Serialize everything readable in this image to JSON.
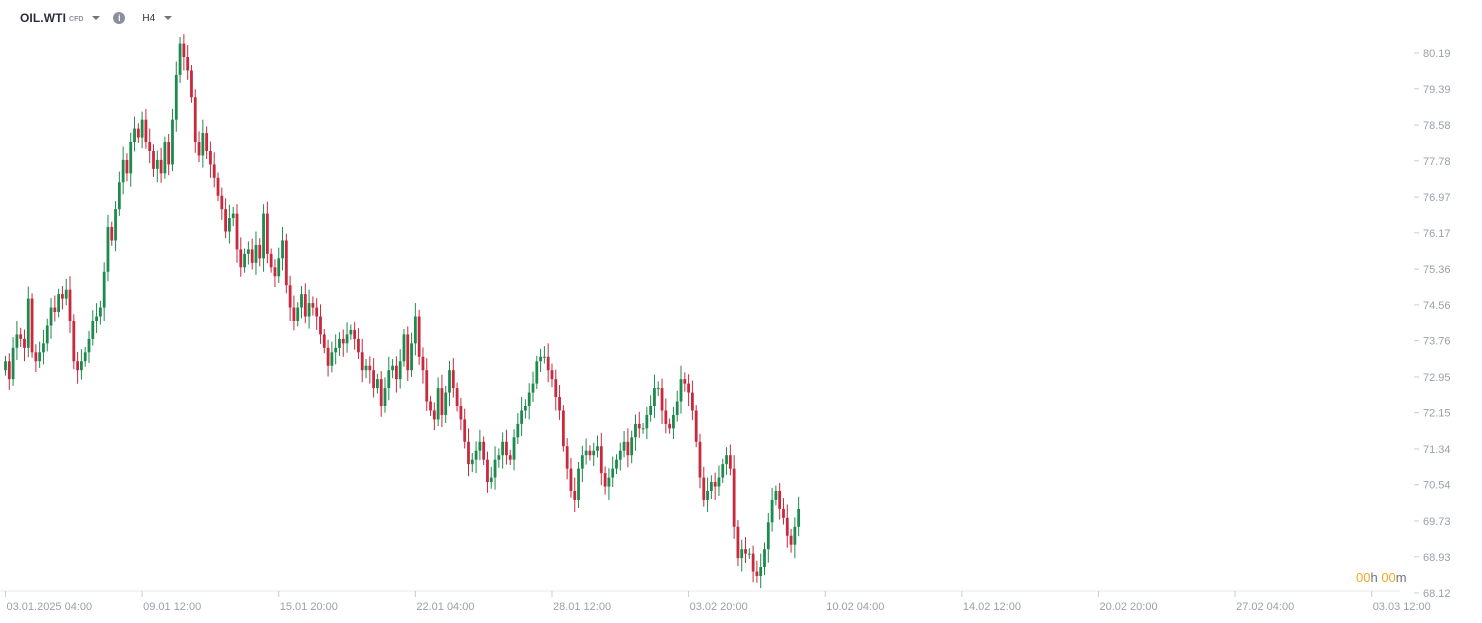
{
  "toolbar": {
    "symbol": "OIL.WTI",
    "symbol_type": "CFD",
    "info_icon": "i",
    "timeframe": "H4"
  },
  "countdown": {
    "h_value": "00",
    "h_unit": "h",
    "m_value": "00",
    "m_unit": "m"
  },
  "colors": {
    "up": "#1e8a4d",
    "down": "#c8293d",
    "axis_text": "#9aa0a8",
    "countdown": "#f5a623"
  },
  "chart_data": {
    "type": "candlestick",
    "timeframe": "H4",
    "y_ticks": [
      "80.19",
      "79.39",
      "78.58",
      "77.78",
      "76.97",
      "76.17",
      "75.36",
      "74.56",
      "73.76",
      "72.95",
      "72.15",
      "71.34",
      "70.54",
      "69.73",
      "68.93",
      "68.12"
    ],
    "ylim": [
      68.12,
      80.19
    ],
    "x_ticks": [
      "03.01.2025  04:00",
      "09.01  12:00",
      "15.01  20:00",
      "22.01  04:00",
      "28.01  12:00",
      "03.02  20:00",
      "10.02  04:00",
      "14.02  12:00",
      "20.02  20:00",
      "27.02  04:00",
      "03.03  12:00"
    ],
    "closes": [
      73.3,
      72.9,
      73.6,
      73.9,
      73.8,
      73.6,
      74.7,
      73.5,
      73.3,
      73.5,
      73.7,
      74.1,
      74.5,
      74.4,
      74.8,
      74.7,
      74.9,
      74.2,
      73.3,
      73.1,
      73.3,
      73.5,
      73.8,
      74.2,
      74.3,
      74.5,
      75.3,
      76.3,
      76.0,
      76.7,
      77.3,
      77.8,
      77.5,
      78.2,
      78.5,
      78.3,
      78.7,
      78.2,
      78.0,
      77.6,
      77.8,
      77.5,
      78.2,
      77.7,
      78.7,
      79.7,
      80.4,
      80.1,
      79.8,
      79.2,
      78.2,
      77.9,
      78.4,
      78.0,
      77.7,
      77.4,
      77.0,
      76.7,
      76.2,
      76.5,
      76.6,
      75.8,
      75.4,
      75.7,
      75.8,
      75.5,
      75.9,
      75.6,
      76.6,
      75.7,
      75.4,
      75.2,
      75.6,
      76.0,
      75.0,
      74.5,
      74.2,
      74.5,
      74.8,
      74.3,
      74.6,
      74.5,
      74.3,
      73.9,
      73.6,
      73.2,
      73.5,
      73.6,
      73.8,
      73.7,
      73.9,
      74.0,
      73.8,
      73.5,
      73.1,
      73.2,
      73.1,
      72.7,
      72.9,
      72.3,
      72.7,
      73.1,
      73.2,
      72.9,
      73.3,
      73.9,
      73.1,
      73.7,
      74.3,
      73.4,
      73.1,
      72.4,
      72.2,
      72.0,
      72.7,
      72.1,
      72.6,
      73.1,
      72.7,
      72.3,
      72.0,
      71.5,
      71.0,
      71.1,
      71.3,
      71.5,
      71.1,
      70.6,
      70.7,
      71.1,
      71.2,
      71.5,
      71.2,
      71.1,
      71.6,
      71.9,
      72.2,
      72.3,
      72.6,
      72.8,
      73.3,
      73.4,
      73.4,
      73.1,
      72.9,
      72.5,
      72.2,
      71.4,
      70.9,
      70.4,
      70.2,
      70.9,
      71.2,
      71.3,
      71.2,
      71.3,
      71.4,
      70.8,
      70.5,
      70.7,
      70.9,
      71.1,
      71.3,
      71.5,
      71.2,
      71.6,
      71.9,
      71.8,
      71.8,
      72.1,
      72.3,
      72.7,
      72.7,
      72.2,
      71.9,
      71.8,
      72.1,
      72.4,
      72.9,
      72.8,
      72.6,
      72.2,
      71.5,
      70.7,
      70.2,
      70.4,
      70.6,
      70.5,
      70.7,
      71.0,
      71.2,
      70.9,
      69.6,
      68.9,
      69.1,
      69.0,
      69.0,
      68.6,
      68.5,
      68.7,
      69.1,
      69.7,
      70.2,
      70.4,
      70.0,
      69.8,
      69.4,
      69.2,
      69.6,
      70.0
    ]
  }
}
